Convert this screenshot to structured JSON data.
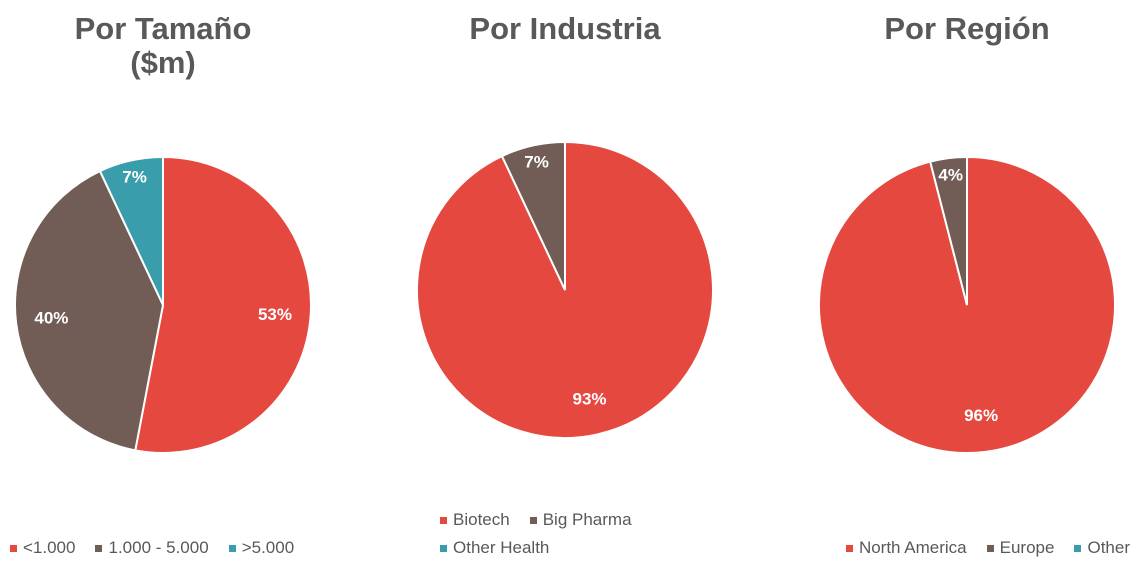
{
  "chart_data": [
    {
      "type": "pie",
      "title": "Por Tamaño ($m)",
      "categories": [
        "<1.000",
        "1.000 - 5.000",
        ">5.000"
      ],
      "values": [
        53,
        40,
        7
      ],
      "value_labels": [
        "53%",
        "40%",
        "7%"
      ],
      "colors": [
        "#e5483f",
        "#715d55",
        "#3a9dab"
      ]
    },
    {
      "type": "pie",
      "title": "Por Industria",
      "categories": [
        "Biotech",
        "Big Pharma",
        "Other Health"
      ],
      "values": [
        93,
        7,
        0
      ],
      "value_labels": [
        "93%",
        "7%",
        null
      ],
      "colors": [
        "#e5483f",
        "#715d55",
        "#3a9dab"
      ]
    },
    {
      "type": "pie",
      "title": "Por Región",
      "categories": [
        "North America",
        "Europe",
        "Other"
      ],
      "values": [
        96,
        4,
        0
      ],
      "value_labels": [
        "96%",
        "4%",
        null
      ],
      "colors": [
        "#e5483f",
        "#715d55",
        "#3a9dab"
      ]
    }
  ]
}
